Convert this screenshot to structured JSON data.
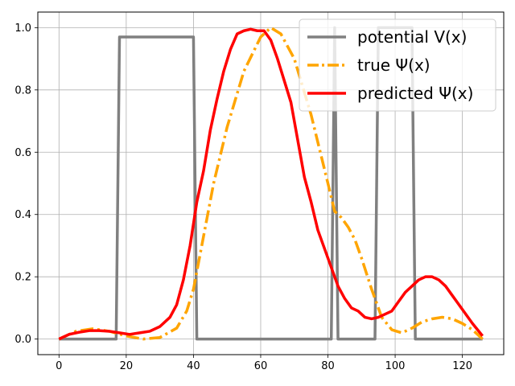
{
  "chart_data": {
    "type": "line",
    "title": "",
    "xlabel": "",
    "ylabel": "",
    "xlim": [
      -6.3,
      132.3
    ],
    "ylim": [
      -0.05,
      1.05
    ],
    "xticks": [
      0,
      20,
      40,
      60,
      80,
      100,
      120
    ],
    "xtick_labels": [
      "0",
      "20",
      "40",
      "60",
      "80",
      "100",
      "120"
    ],
    "yticks": [
      0.0,
      0.2,
      0.4,
      0.6,
      0.8,
      1.0
    ],
    "ytick_labels": [
      "0.0",
      "0.2",
      "0.4",
      "0.6",
      "0.8",
      "1.0"
    ],
    "grid": true,
    "legend_position": "top-right",
    "series": [
      {
        "name": "potential V(x)",
        "color": "#808080",
        "style": "solid",
        "x": [
          0,
          17,
          18,
          40,
          41,
          81,
          82,
          83,
          94,
          95,
          105,
          106,
          126
        ],
        "y": [
          0,
          0,
          0.97,
          0.97,
          0,
          0,
          1.0,
          0,
          0,
          1.0,
          1.0,
          0,
          0
        ]
      },
      {
        "name": "true Ψ(x)",
        "color": "#ffa500",
        "style": "dashdot",
        "x": [
          0,
          5,
          10,
          15,
          20,
          25,
          30,
          35,
          38,
          40,
          43,
          46,
          50,
          55,
          60,
          63,
          66,
          70,
          75,
          80,
          82,
          84,
          86,
          88,
          90,
          93,
          96,
          99,
          102,
          105,
          108,
          111,
          114,
          117,
          120,
          123,
          126
        ],
        "y": [
          0.0,
          0.025,
          0.033,
          0.025,
          0.01,
          0.0,
          0.005,
          0.035,
          0.09,
          0.16,
          0.33,
          0.5,
          0.68,
          0.86,
          0.97,
          1.0,
          0.98,
          0.9,
          0.72,
          0.5,
          0.41,
          0.39,
          0.36,
          0.32,
          0.26,
          0.16,
          0.07,
          0.03,
          0.02,
          0.035,
          0.055,
          0.065,
          0.07,
          0.065,
          0.05,
          0.03,
          0.0
        ]
      },
      {
        "name": "predicted Ψ(x)",
        "color": "#ff0000",
        "style": "solid",
        "x": [
          0,
          3,
          6,
          9,
          12,
          15,
          18,
          21,
          24,
          27,
          30,
          33,
          35,
          37,
          39,
          41,
          43,
          45,
          47,
          49,
          51,
          53,
          55,
          57,
          59,
          61,
          63,
          65,
          67,
          69,
          71,
          73,
          75,
          77,
          79,
          81,
          83,
          85,
          87,
          89,
          91,
          93,
          95,
          97,
          99,
          101,
          103,
          105,
          107,
          109,
          111,
          113,
          115,
          117,
          119,
          121,
          123,
          126
        ],
        "y": [
          0.0,
          0.015,
          0.022,
          0.027,
          0.027,
          0.025,
          0.02,
          0.015,
          0.02,
          0.025,
          0.04,
          0.07,
          0.11,
          0.19,
          0.3,
          0.44,
          0.54,
          0.67,
          0.77,
          0.86,
          0.93,
          0.98,
          0.99,
          0.995,
          0.99,
          0.99,
          0.96,
          0.9,
          0.83,
          0.76,
          0.64,
          0.52,
          0.44,
          0.35,
          0.29,
          0.23,
          0.17,
          0.13,
          0.1,
          0.09,
          0.07,
          0.065,
          0.07,
          0.08,
          0.09,
          0.12,
          0.15,
          0.17,
          0.19,
          0.2,
          0.2,
          0.19,
          0.17,
          0.14,
          0.11,
          0.08,
          0.05,
          0.01
        ]
      }
    ]
  }
}
